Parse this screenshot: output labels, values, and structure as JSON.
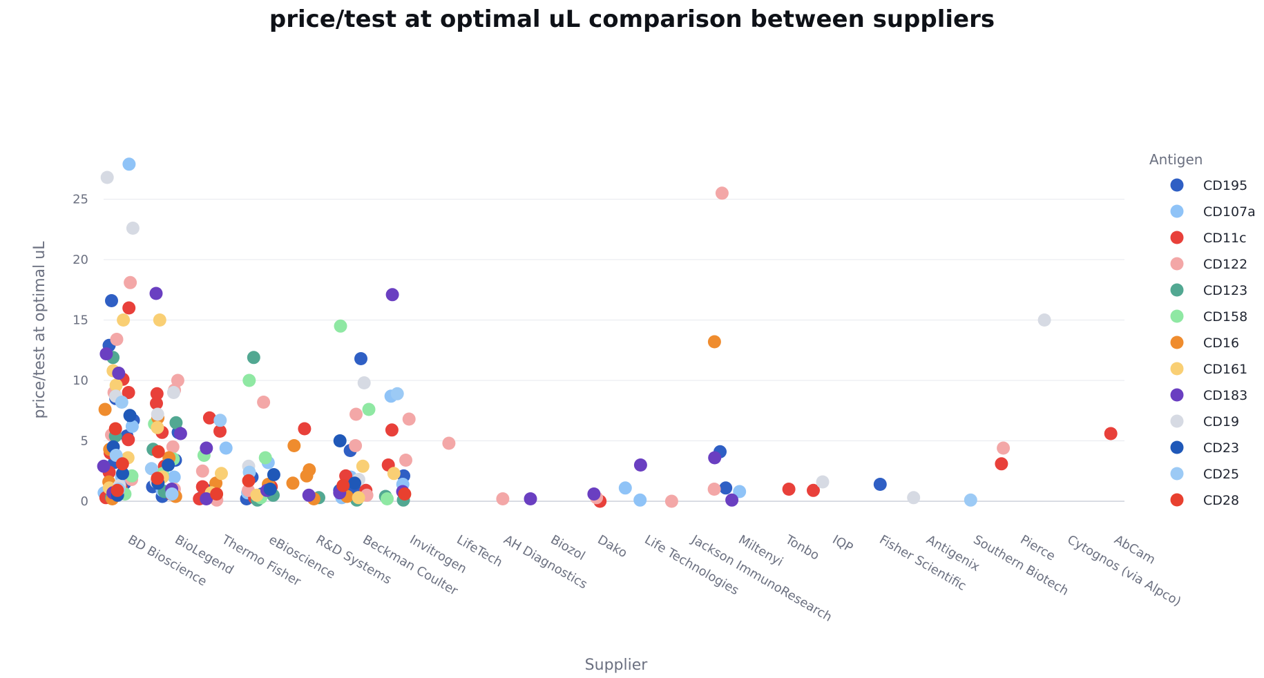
{
  "chart_data": {
    "type": "scatter",
    "title": "price/test at optimal uL comparison between suppliers",
    "xlabel": "Supplier",
    "ylabel": "price/test at optimal uL",
    "ylim": [
      -1.7,
      29.2
    ],
    "yticks": [
      0,
      5,
      10,
      15,
      20,
      25
    ],
    "grid": true,
    "legend_title": "Antigen",
    "legend_position": "right",
    "categories": [
      "BD Bioscience",
      "BioLegend",
      "Thermo Fisher",
      "eBioscience",
      "R&D Systems",
      "Beckman Coulter",
      "Invitrogen",
      "LifeTech",
      "AH Diagnostics",
      "Biozol",
      "Dako",
      "Life Technologies",
      "Jackson ImmunoResearch",
      "Miltenyi",
      "Tonbo",
      "IQP",
      "Fisher Scientific",
      "Antigenix",
      "Southern Biotech",
      "Pierce",
      "Cytognos (via Alpco)",
      "AbCam"
    ],
    "series": [
      {
        "name": "CD195",
        "color": "#2f5fc4",
        "points": [
          [
            0,
            12.9
          ],
          [
            0,
            8.5
          ],
          [
            0,
            5.4
          ],
          [
            0,
            16.6
          ],
          [
            0,
            3.2
          ],
          [
            0,
            1.5
          ],
          [
            0,
            6.7
          ],
          [
            0,
            0.8
          ],
          [
            1,
            5.7
          ],
          [
            1,
            3.4
          ],
          [
            1,
            0.4
          ],
          [
            1,
            1.2
          ],
          [
            2,
            1.0
          ],
          [
            2,
            0.3
          ],
          [
            3,
            2.0
          ],
          [
            3,
            0.6
          ],
          [
            3,
            0.2
          ],
          [
            5,
            4.2
          ],
          [
            5,
            0.6
          ],
          [
            5,
            1.1
          ],
          [
            5,
            11.8
          ],
          [
            5,
            0.9
          ],
          [
            6,
            2.1
          ],
          [
            13,
            4.1
          ],
          [
            13,
            1.1
          ],
          [
            16,
            1.4
          ]
        ]
      },
      {
        "name": "CD107a",
        "color": "#8fc3f7",
        "points": [
          [
            0,
            27.9
          ],
          [
            0,
            6.2
          ],
          [
            0,
            2.0
          ],
          [
            0,
            0.7
          ],
          [
            1,
            0.9
          ],
          [
            1,
            2.0
          ],
          [
            2,
            4.4
          ],
          [
            3,
            3.2
          ],
          [
            3,
            0.7
          ],
          [
            5,
            0.3
          ],
          [
            5,
            2.0
          ],
          [
            6,
            8.7
          ],
          [
            6,
            1.4
          ],
          [
            11,
            1.1
          ],
          [
            11,
            0.1
          ],
          [
            13,
            0.8
          ]
        ]
      },
      {
        "name": "CD11c",
        "color": "#e8403a",
        "points": [
          [
            0,
            16.0
          ],
          [
            0,
            10.1
          ],
          [
            0,
            9.0
          ],
          [
            0,
            4.0
          ],
          [
            0,
            2.4
          ],
          [
            0,
            1.1
          ],
          [
            0,
            0.3
          ],
          [
            0,
            5.1
          ],
          [
            1,
            8.9
          ],
          [
            1,
            8.1
          ],
          [
            1,
            5.7
          ],
          [
            1,
            2.9
          ],
          [
            1,
            0.6
          ],
          [
            2,
            6.9
          ],
          [
            2,
            5.8
          ],
          [
            2,
            1.2
          ],
          [
            2,
            0.2
          ],
          [
            3,
            1.2
          ],
          [
            3,
            0.3
          ],
          [
            4,
            6.0
          ],
          [
            5,
            2.1
          ],
          [
            5,
            0.9
          ],
          [
            6,
            5.9
          ],
          [
            6,
            3.0
          ],
          [
            10,
            0.0
          ],
          [
            14,
            1.0
          ],
          [
            15,
            0.9
          ],
          [
            19,
            3.1
          ],
          [
            21,
            5.6
          ]
        ]
      },
      {
        "name": "CD122",
        "color": "#f3a7a7",
        "points": [
          [
            0,
            18.1
          ],
          [
            0,
            13.4
          ],
          [
            0,
            9.0
          ],
          [
            0,
            5.5
          ],
          [
            0,
            1.8
          ],
          [
            0,
            0.4
          ],
          [
            1,
            10.0
          ],
          [
            1,
            9.2
          ],
          [
            1,
            4.5
          ],
          [
            1,
            1.0
          ],
          [
            2,
            2.5
          ],
          [
            2,
            0.1
          ],
          [
            3,
            8.2
          ],
          [
            3,
            0.9
          ],
          [
            5,
            7.2
          ],
          [
            5,
            4.6
          ],
          [
            5,
            0.5
          ],
          [
            6,
            6.8
          ],
          [
            6,
            3.4
          ],
          [
            7,
            4.8
          ],
          [
            8,
            0.2
          ],
          [
            10,
            0.3
          ],
          [
            12,
            0.0
          ],
          [
            13,
            25.5
          ],
          [
            13,
            1.0
          ],
          [
            19,
            4.4
          ]
        ]
      },
      {
        "name": "CD123",
        "color": "#52a892",
        "points": [
          [
            0,
            11.9
          ],
          [
            0,
            5.4
          ],
          [
            0,
            0.3
          ],
          [
            1,
            6.5
          ],
          [
            1,
            4.3
          ],
          [
            1,
            0.8
          ],
          [
            3,
            11.9
          ],
          [
            3,
            0.5
          ],
          [
            3,
            0.1
          ],
          [
            4,
            0.3
          ],
          [
            5,
            0.1
          ],
          [
            6,
            0.4
          ],
          [
            6,
            0.1
          ]
        ]
      },
      {
        "name": "CD158",
        "color": "#8fe8a3",
        "points": [
          [
            0,
            2.1
          ],
          [
            0,
            0.6
          ],
          [
            1,
            3.5
          ],
          [
            1,
            2.3
          ],
          [
            1,
            6.4
          ],
          [
            2,
            3.8
          ],
          [
            3,
            10.0
          ],
          [
            3,
            3.6
          ],
          [
            3,
            0.3
          ],
          [
            5,
            14.5
          ],
          [
            5,
            7.6
          ],
          [
            6,
            0.2
          ]
        ]
      },
      {
        "name": "CD16",
        "color": "#ef8c2e",
        "points": [
          [
            0,
            7.6
          ],
          [
            0,
            4.3
          ],
          [
            0,
            1.6
          ],
          [
            0,
            0.2
          ],
          [
            1,
            6.9
          ],
          [
            1,
            3.6
          ],
          [
            1,
            0.4
          ],
          [
            2,
            1.5
          ],
          [
            3,
            1.4
          ],
          [
            4,
            4.6
          ],
          [
            4,
            2.6
          ],
          [
            4,
            2.1
          ],
          [
            4,
            1.5
          ],
          [
            4,
            0.2
          ],
          [
            5,
            0.4
          ],
          [
            13,
            13.2
          ]
        ]
      },
      {
        "name": "CD161",
        "color": "#f9cf74",
        "points": [
          [
            0,
            15.0
          ],
          [
            0,
            10.8
          ],
          [
            0,
            9.6
          ],
          [
            0,
            3.6
          ],
          [
            0,
            1.1
          ],
          [
            1,
            15.0
          ],
          [
            1,
            6.1
          ],
          [
            1,
            2.0
          ],
          [
            2,
            2.3
          ],
          [
            2,
            0.7
          ],
          [
            3,
            0.5
          ],
          [
            5,
            2.9
          ],
          [
            5,
            0.3
          ],
          [
            6,
            2.3
          ]
        ]
      },
      {
        "name": "CD183",
        "color": "#6a3fc1",
        "points": [
          [
            0,
            12.2
          ],
          [
            0,
            10.6
          ],
          [
            0,
            2.9
          ],
          [
            0,
            0.7
          ],
          [
            1,
            17.2
          ],
          [
            1,
            5.6
          ],
          [
            1,
            1.0
          ],
          [
            2,
            4.4
          ],
          [
            2,
            0.2
          ],
          [
            3,
            0.9
          ],
          [
            4,
            0.5
          ],
          [
            5,
            0.7
          ],
          [
            6,
            17.1
          ],
          [
            6,
            0.8
          ],
          [
            9,
            0.2
          ],
          [
            10,
            0.6
          ],
          [
            11,
            3.0
          ],
          [
            13,
            3.6
          ],
          [
            13,
            0.1
          ]
        ]
      },
      {
        "name": "CD19",
        "color": "#d6dae3",
        "points": [
          [
            0,
            26.8
          ],
          [
            0,
            22.6
          ],
          [
            0,
            8.7
          ],
          [
            0,
            1.3
          ],
          [
            1,
            9.0
          ],
          [
            1,
            7.2
          ],
          [
            1,
            1.6
          ],
          [
            3,
            2.9
          ],
          [
            5,
            9.8
          ],
          [
            5,
            1.8
          ],
          [
            15,
            1.6
          ],
          [
            17,
            0.3
          ],
          [
            20,
            15.0
          ]
        ]
      },
      {
        "name": "CD23",
        "color": "#1f58b8",
        "points": [
          [
            0,
            7.1
          ],
          [
            0,
            4.5
          ],
          [
            0,
            2.3
          ],
          [
            0,
            0.5
          ],
          [
            1,
            3.0
          ],
          [
            1,
            1.5
          ],
          [
            3,
            2.2
          ],
          [
            3,
            1.0
          ],
          [
            5,
            5.0
          ],
          [
            5,
            1.5
          ]
        ]
      },
      {
        "name": "CD25",
        "color": "#9ccaf5",
        "points": [
          [
            0,
            8.2
          ],
          [
            0,
            3.8
          ],
          [
            0,
            1.0
          ],
          [
            1,
            2.7
          ],
          [
            1,
            0.6
          ],
          [
            2,
            6.7
          ],
          [
            3,
            2.4
          ],
          [
            6,
            8.9
          ],
          [
            18,
            0.1
          ]
        ]
      },
      {
        "name": "CD28",
        "color": "#e8402f",
        "points": [
          [
            0,
            6.0
          ],
          [
            0,
            3.1
          ],
          [
            0,
            0.9
          ],
          [
            1,
            4.1
          ],
          [
            1,
            1.9
          ],
          [
            2,
            0.6
          ],
          [
            3,
            1.7
          ],
          [
            5,
            1.3
          ],
          [
            6,
            0.6
          ]
        ]
      }
    ]
  }
}
